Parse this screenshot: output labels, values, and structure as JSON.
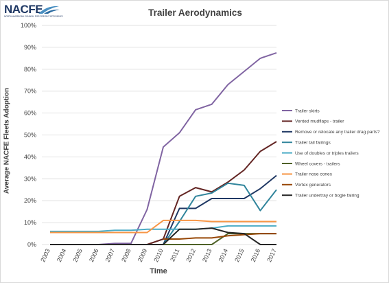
{
  "logo": {
    "text": "NACFE",
    "subtitle": "NORTH AMERICAN COUNCIL FOR FREIGHT EFFICIENCY"
  },
  "chart_data": {
    "type": "line",
    "title": "Trailer Aerodynamics",
    "xlabel": "Time",
    "ylabel": "Average NACFE Fleets Adoption",
    "ylim": [
      0,
      100
    ],
    "yticks": [
      "0%",
      "10%",
      "20%",
      "30%",
      "40%",
      "50%",
      "60%",
      "70%",
      "80%",
      "90%",
      "100%"
    ],
    "x": [
      "2003",
      "2004",
      "2005",
      "2006",
      "2007",
      "2008",
      "2009",
      "2010",
      "2011",
      "2012",
      "2013",
      "2014",
      "2015",
      "2016",
      "2017"
    ],
    "grid": true,
    "legend_position": "right",
    "series": [
      {
        "name": "Trailer skirts",
        "color": "#8064a2",
        "values": [
          0,
          0,
          0,
          0,
          0.5,
          0.5,
          16,
          44.5,
          51,
          61.5,
          64,
          73,
          79,
          85,
          87.5
        ]
      },
      {
        "name": "Vented mudflaps - trailer",
        "color": "#632523",
        "values": [
          null,
          null,
          null,
          null,
          null,
          null,
          0,
          2.5,
          22,
          26,
          24,
          28.5,
          34,
          42.5,
          47
        ]
      },
      {
        "name": "Remove or relocate any trailer drag parts?",
        "color": "#1f3864",
        "values": [
          null,
          null,
          null,
          null,
          null,
          null,
          0,
          0,
          16.5,
          16.5,
          21,
          21,
          21,
          25.5,
          31.5
        ]
      },
      {
        "name": "Trailer tail fairings",
        "color": "#31859c",
        "values": [
          null,
          null,
          null,
          null,
          null,
          null,
          null,
          0,
          10.5,
          22,
          23.5,
          28,
          27,
          15.5,
          25
        ]
      },
      {
        "name": "Use of doubles or triples trailers",
        "color": "#4bacc6",
        "values": [
          6,
          6,
          6,
          6,
          6.5,
          6.5,
          7,
          7,
          7,
          7,
          7.5,
          8.5,
          8.5,
          8.5,
          8.5
        ]
      },
      {
        "name": "Wheel covers - trailers",
        "color": "#4f6228",
        "values": [
          null,
          null,
          null,
          null,
          null,
          null,
          null,
          0,
          0,
          0,
          0,
          5,
          5,
          5,
          5
        ]
      },
      {
        "name": "Trailer nose cones",
        "color": "#f79646",
        "values": [
          5.5,
          5.5,
          5.5,
          5.5,
          5.5,
          5.5,
          5.5,
          11,
          11,
          11,
          10.5,
          10.5,
          10.5,
          10.5,
          10.5
        ]
      },
      {
        "name": "Vortex generators",
        "color": "#974706",
        "values": [
          null,
          null,
          null,
          null,
          null,
          null,
          null,
          2.5,
          2.5,
          3,
          3,
          4,
          4.5,
          5,
          5
        ]
      },
      {
        "name": "Trailer undertray or bogie fairing",
        "color": "#262626",
        "values": [
          0,
          0,
          0,
          0,
          0,
          0,
          0,
          0,
          7,
          7,
          7.5,
          5.5,
          5,
          0,
          0
        ]
      }
    ]
  }
}
